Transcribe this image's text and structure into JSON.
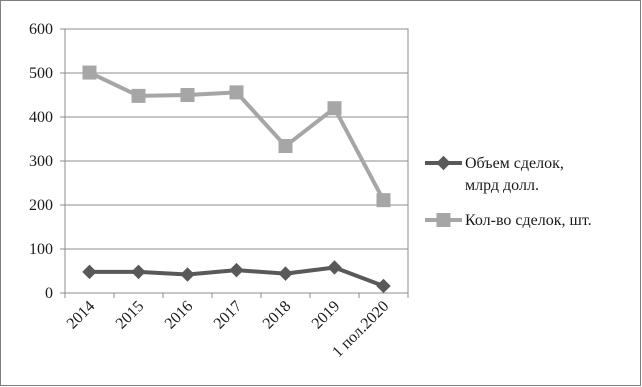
{
  "chart_data": {
    "type": "line",
    "title": "",
    "xlabel": "",
    "ylabel": "",
    "categories": [
      "2014",
      "2015",
      "2016",
      "2017",
      "2018",
      "2019",
      "1 пол.2020"
    ],
    "ylim": [
      0,
      600
    ],
    "yticks": [
      "0",
      "100",
      "200",
      "300",
      "400",
      "500",
      "600"
    ],
    "grid": "horizontal",
    "legend_position": "right",
    "series": [
      {
        "name": "Объем сделок, млрд долл.",
        "name_lines": [
          "Объем сделок,",
          "млрд долл."
        ],
        "marker": "diamond",
        "color": "#595959",
        "values": [
          48,
          48,
          42,
          52,
          44,
          58,
          16
        ]
      },
      {
        "name": "Кол-во сделок, шт.",
        "name_lines": [
          "Кол-во сделок, шт."
        ],
        "marker": "square",
        "color": "#a6a6a6",
        "values": [
          501,
          448,
          450,
          456,
          334,
          420,
          211
        ]
      }
    ]
  }
}
